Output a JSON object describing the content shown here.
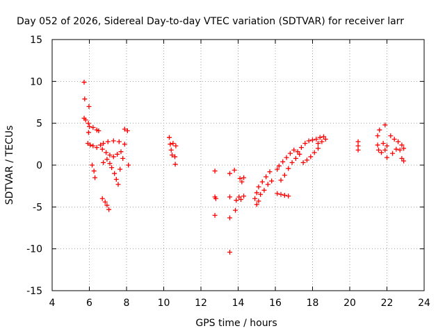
{
  "chart_data": {
    "type": "scatter",
    "title": "Day 052 of 2026, Sidereal Day-to-day VTEC variation (SDTVAR) for receiver larr",
    "xlabel": "GPS time / hours",
    "ylabel": "SDTVAR / TECUs",
    "xlim": [
      4,
      24
    ],
    "ylim": [
      -15,
      15
    ],
    "xticks": [
      "4",
      "6",
      "8",
      "10",
      "12",
      "14",
      "16",
      "18",
      "20",
      "22",
      "24"
    ],
    "yticks": [
      "-15",
      "-10",
      "-5",
      "0",
      "5",
      "10",
      "15"
    ],
    "grid": true,
    "marker": "plus",
    "color": "#ff0000",
    "series": [
      {
        "name": "SDTVAR",
        "points": [
          [
            5.72,
            9.9
          ],
          [
            5.75,
            7.9
          ],
          [
            5.72,
            5.6
          ],
          [
            5.8,
            5.4
          ],
          [
            5.98,
            7.0
          ],
          [
            5.95,
            5.0
          ],
          [
            6.0,
            4.6
          ],
          [
            6.2,
            4.5
          ],
          [
            6.4,
            4.2
          ],
          [
            6.5,
            4.1
          ],
          [
            5.96,
            3.9
          ],
          [
            5.92,
            2.6
          ],
          [
            6.05,
            2.4
          ],
          [
            6.2,
            2.3
          ],
          [
            6.4,
            2.1
          ],
          [
            6.6,
            2.4
          ],
          [
            6.15,
            0.0
          ],
          [
            6.25,
            -0.7
          ],
          [
            6.3,
            -1.5
          ],
          [
            6.75,
            2.6
          ],
          [
            7.0,
            2.8
          ],
          [
            7.3,
            2.9
          ],
          [
            7.6,
            2.8
          ],
          [
            7.9,
            2.5
          ],
          [
            6.7,
            1.9
          ],
          [
            6.9,
            1.5
          ],
          [
            7.1,
            1.2
          ],
          [
            7.3,
            1.0
          ],
          [
            7.5,
            1.3
          ],
          [
            7.7,
            1.6
          ],
          [
            6.75,
            0.3
          ],
          [
            6.95,
            0.7
          ],
          [
            7.1,
            0.2
          ],
          [
            7.2,
            -0.3
          ],
          [
            7.35,
            -1.0
          ],
          [
            7.45,
            -1.7
          ],
          [
            7.55,
            -2.3
          ],
          [
            7.65,
            -0.5
          ],
          [
            7.8,
            0.8
          ],
          [
            6.7,
            -4.0
          ],
          [
            6.85,
            -4.4
          ],
          [
            6.95,
            -4.8
          ],
          [
            7.05,
            -5.3
          ],
          [
            7.9,
            4.3
          ],
          [
            8.05,
            4.1
          ],
          [
            8.1,
            0.0
          ],
          [
            10.3,
            3.3
          ],
          [
            10.35,
            2.5
          ],
          [
            10.4,
            1.8
          ],
          [
            10.5,
            2.6
          ],
          [
            10.45,
            1.2
          ],
          [
            10.6,
            1.0
          ],
          [
            10.65,
            2.3
          ],
          [
            10.62,
            0.1
          ],
          [
            12.75,
            -0.7
          ],
          [
            12.75,
            -3.8
          ],
          [
            12.8,
            -4.0
          ],
          [
            12.75,
            -6.0
          ],
          [
            13.55,
            -1.0
          ],
          [
            13.55,
            -3.8
          ],
          [
            13.55,
            -6.3
          ],
          [
            13.55,
            -10.4
          ],
          [
            13.8,
            -0.6
          ],
          [
            13.9,
            -4.2
          ],
          [
            13.85,
            -5.4
          ],
          [
            14.1,
            -1.6
          ],
          [
            14.2,
            -2.0
          ],
          [
            14.3,
            -1.5
          ],
          [
            14.05,
            -3.8
          ],
          [
            14.15,
            -4.1
          ],
          [
            14.3,
            -3.7
          ],
          [
            14.9,
            -4.0
          ],
          [
            15.0,
            -3.3
          ],
          [
            15.1,
            -2.6
          ],
          [
            15.3,
            -2.0
          ],
          [
            15.5,
            -1.4
          ],
          [
            15.7,
            -0.8
          ],
          [
            15.0,
            -4.7
          ],
          [
            15.1,
            -4.3
          ],
          [
            15.2,
            -3.5
          ],
          [
            15.4,
            -3.0
          ],
          [
            15.6,
            -2.3
          ],
          [
            15.8,
            -1.9
          ],
          [
            16.1,
            -0.5
          ],
          [
            16.2,
            -0.1
          ],
          [
            16.4,
            0.4
          ],
          [
            16.6,
            0.9
          ],
          [
            16.8,
            1.4
          ],
          [
            17.0,
            1.8
          ],
          [
            16.3,
            -1.8
          ],
          [
            16.5,
            -1.2
          ],
          [
            16.7,
            -0.4
          ],
          [
            16.9,
            0.3
          ],
          [
            17.1,
            0.8
          ],
          [
            17.3,
            1.3
          ],
          [
            16.1,
            -3.4
          ],
          [
            16.3,
            -3.5
          ],
          [
            16.5,
            -3.6
          ],
          [
            16.7,
            -3.7
          ],
          [
            17.2,
            1.6
          ],
          [
            17.4,
            2.1
          ],
          [
            17.6,
            2.6
          ],
          [
            17.8,
            2.9
          ],
          [
            18.0,
            3.0
          ],
          [
            18.2,
            3.1
          ],
          [
            18.4,
            3.3
          ],
          [
            18.6,
            3.4
          ],
          [
            18.3,
            2.6
          ],
          [
            18.5,
            2.8
          ],
          [
            18.7,
            3.1
          ],
          [
            17.5,
            0.3
          ],
          [
            17.7,
            0.6
          ],
          [
            17.9,
            1.0
          ],
          [
            18.1,
            1.5
          ],
          [
            18.3,
            2.0
          ],
          [
            20.45,
            2.8
          ],
          [
            20.45,
            2.3
          ],
          [
            20.45,
            1.8
          ],
          [
            21.5,
            3.5
          ],
          [
            21.6,
            4.2
          ],
          [
            21.5,
            2.4
          ],
          [
            21.55,
            1.8
          ],
          [
            21.7,
            1.5
          ],
          [
            21.9,
            4.8
          ],
          [
            21.8,
            2.6
          ],
          [
            21.9,
            1.8
          ],
          [
            22.0,
            2.3
          ],
          [
            22.0,
            0.9
          ],
          [
            22.2,
            3.5
          ],
          [
            22.4,
            3.1
          ],
          [
            22.6,
            2.8
          ],
          [
            22.8,
            2.4
          ],
          [
            22.9,
            2.0
          ],
          [
            22.3,
            1.4
          ],
          [
            22.5,
            1.9
          ],
          [
            22.7,
            1.8
          ],
          [
            22.8,
            0.8
          ],
          [
            22.9,
            0.5
          ]
        ]
      }
    ]
  }
}
